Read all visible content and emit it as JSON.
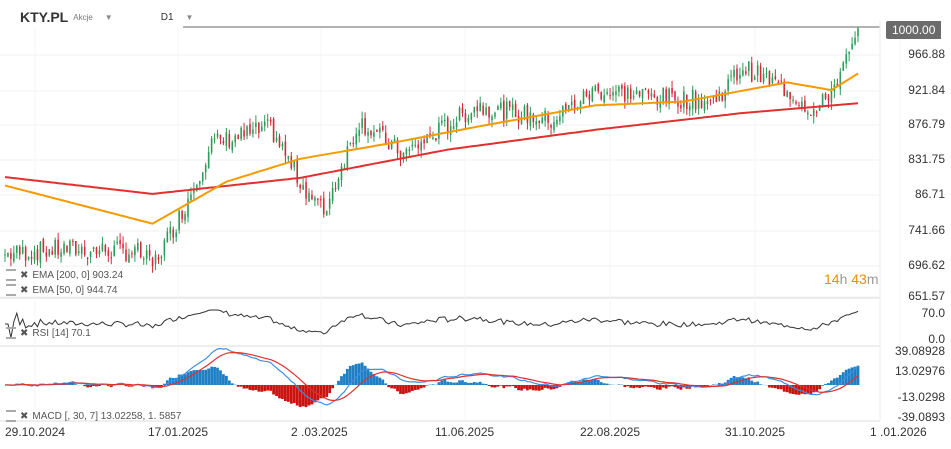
{
  "header": {
    "symbol": "KTY.PL",
    "type": "Akcje",
    "timeframe": "D1"
  },
  "price_badge": "1000.00",
  "countdown": {
    "h": "14",
    "h_unit": "h",
    "m": "43",
    "m_unit": "m"
  },
  "legends": {
    "ema200": "EMA [200, 0] 903.24",
    "ema50": "EMA [50, 0] 944.74",
    "rsi": "RSI [14] 70.1",
    "macd": "MACD [, 30, 7] 13.02258, 1. 5857"
  },
  "colors": {
    "up": "#2e9b5a",
    "down": "#d6293b",
    "ema200": "#e03030",
    "ema50": "#f59a00",
    "macd_line": "#3d8fe0",
    "signal": "#e03030",
    "hist_pos": "#1f7fc4",
    "hist_neg": "#cc1111"
  },
  "chart_data": {
    "type": "candlestick",
    "price_axis": [
      "966.88",
      "921.84",
      "876.79",
      "831.75",
      "86.71",
      "741.66",
      "696.62",
      "651.57"
    ],
    "price_range": [
      651.57,
      1000
    ],
    "rsi_axis": [
      "70.0",
      "0.0"
    ],
    "macd_axis": [
      "39.08928",
      "13.02976",
      "-13.0298",
      "-39.0893"
    ],
    "x_labels": [
      "29.10.2024",
      "17.01.2025",
      "2 .03.2025",
      "11.06.2025",
      "22.08.2025",
      "31.10.2025",
      "1 .01.2026"
    ],
    "bars": 290,
    "close_anchors": [
      [
        0,
        705
      ],
      [
        20,
        712
      ],
      [
        45,
        708
      ],
      [
        50,
        690
      ],
      [
        60,
        760
      ],
      [
        70,
        850
      ],
      [
        90,
        870
      ],
      [
        100,
        800
      ],
      [
        108,
        760
      ],
      [
        120,
        880
      ],
      [
        135,
        835
      ],
      [
        160,
        900
      ],
      [
        185,
        880
      ],
      [
        200,
        920
      ],
      [
        225,
        910
      ],
      [
        240,
        905
      ],
      [
        250,
        950
      ],
      [
        265,
        920
      ],
      [
        275,
        890
      ],
      [
        283,
        940
      ],
      [
        290,
        1000
      ]
    ],
    "ema200": [
      [
        0,
        806
      ],
      [
        50,
        784
      ],
      [
        100,
        805
      ],
      [
        150,
        842
      ],
      [
        200,
        868
      ],
      [
        250,
        890
      ],
      [
        290,
        903
      ]
    ],
    "ema50": [
      [
        0,
        795
      ],
      [
        50,
        745
      ],
      [
        75,
        800
      ],
      [
        100,
        830
      ],
      [
        130,
        850
      ],
      [
        160,
        872
      ],
      [
        200,
        900
      ],
      [
        230,
        905
      ],
      [
        265,
        930
      ],
      [
        280,
        920
      ],
      [
        290,
        944
      ]
    ]
  }
}
